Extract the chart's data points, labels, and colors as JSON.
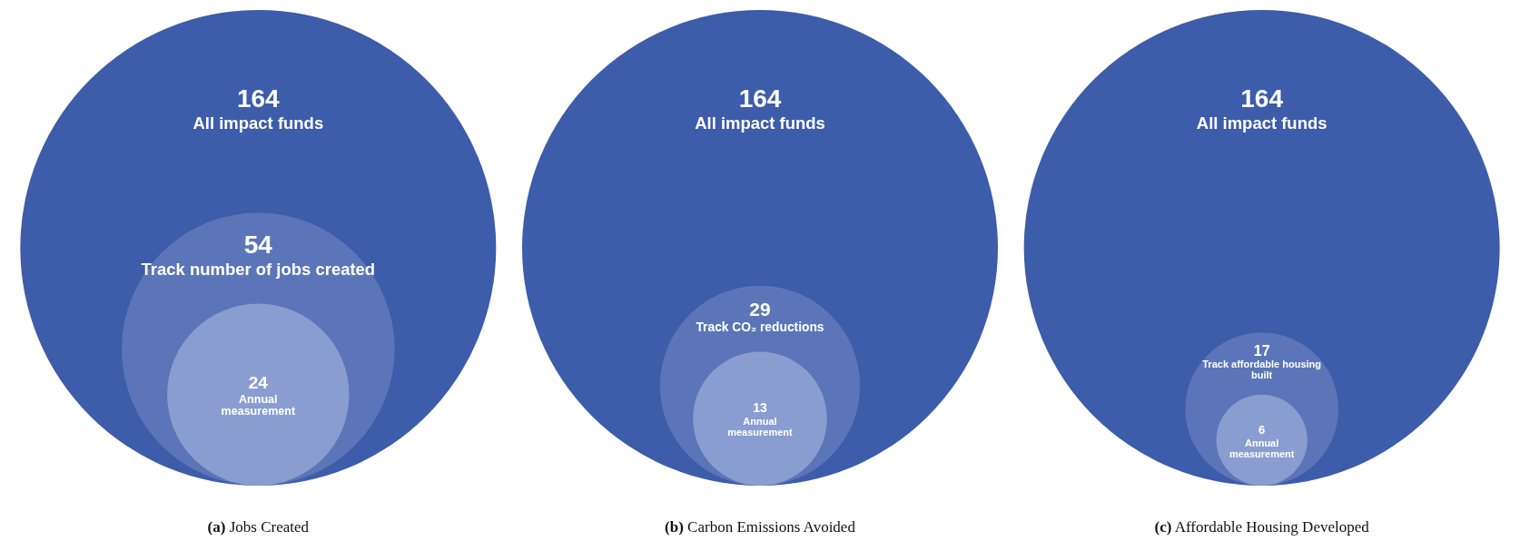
{
  "chart_data": [
    {
      "type": "other",
      "title": "(a) Jobs Created",
      "categories": [
        "All impact funds",
        "Track number of jobs created",
        "Annual measurement"
      ],
      "values": [
        164,
        54,
        24
      ],
      "data_labels": true,
      "colors": [
        "#3d5ca9",
        "#5b75b8",
        "#8a9dd0"
      ]
    },
    {
      "type": "other",
      "title": "(b) Carbon Emissions Avoided",
      "categories": [
        "All impact funds",
        "Track CO₂ reductions",
        "Annual measurement"
      ],
      "values": [
        164,
        29,
        13
      ],
      "data_labels": true,
      "colors": [
        "#3d5ca9",
        "#5b75b8",
        "#8a9dd0"
      ]
    },
    {
      "type": "other",
      "title": "(c) Affordable Housing Developed",
      "categories": [
        "All impact funds",
        "Track affordable housing built",
        "Annual measurement"
      ],
      "values": [
        164,
        17,
        6
      ],
      "data_labels": true,
      "colors": [
        "#3d5ca9",
        "#5b75b8",
        "#8a9dd0"
      ]
    }
  ]
}
